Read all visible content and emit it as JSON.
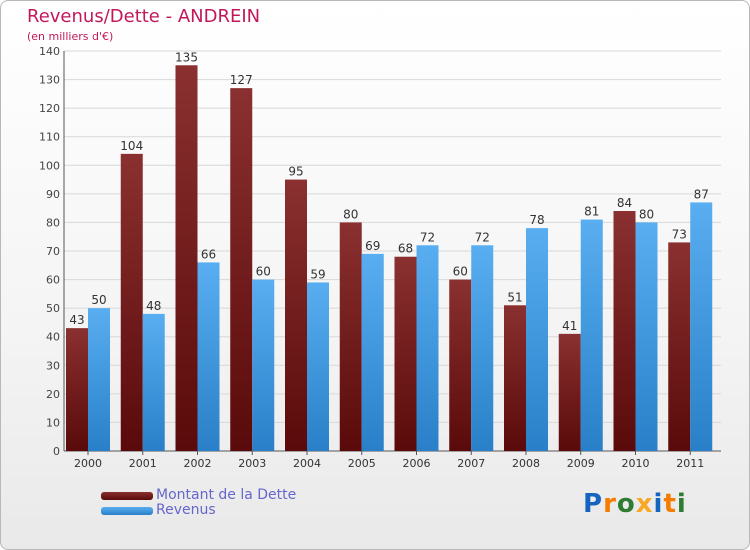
{
  "title": "Revenus/Dette - ANDREIN",
  "subtitle": "(en milliers d'€)",
  "logo": {
    "text": "Proxiti",
    "letter_colors": [
      "#1565c0",
      "#f57c00",
      "#2e7d32",
      "#f9a825",
      "#1565c0",
      "#f57c00",
      "#2e7d32"
    ]
  },
  "chart_data": {
    "type": "bar",
    "title": "Revenus/Dette - ANDREIN",
    "subtitle": "(en milliers d'€)",
    "categories": [
      "2000",
      "2001",
      "2002",
      "2003",
      "2004",
      "2005",
      "2006",
      "2007",
      "2008",
      "2009",
      "2010",
      "2011"
    ],
    "series": [
      {
        "name": "Montant de la Dette",
        "color": "#7a1f1f",
        "values": [
          43,
          104,
          135,
          127,
          95,
          80,
          68,
          60,
          51,
          41,
          84,
          73
        ]
      },
      {
        "name": "Revenus",
        "color": "#4aa0e0",
        "values": [
          50,
          48,
          66,
          60,
          59,
          69,
          72,
          72,
          78,
          81,
          80,
          87
        ]
      }
    ],
    "yticks": [
      0,
      10,
      20,
      30,
      40,
      50,
      60,
      70,
      80,
      90,
      100,
      110,
      120,
      130,
      140
    ],
    "ylim": [
      0,
      140
    ],
    "grid": true,
    "legend": "bottom-left"
  }
}
